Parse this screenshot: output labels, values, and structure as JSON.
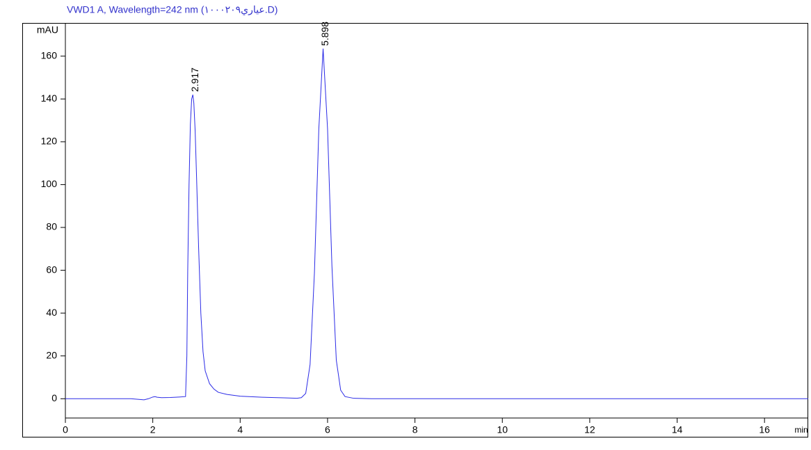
{
  "chart_data": {
    "type": "line",
    "title": "VWD1 A, Wavelength=242 nm (عياري١٠٠٠٢٠٩.D)",
    "y_label": "mAU",
    "x_label": "min",
    "xlim": [
      0,
      17
    ],
    "ylim": [
      -9,
      175.5
    ],
    "xticks": [
      0,
      2,
      4,
      6,
      8,
      10,
      12,
      14,
      16
    ],
    "yticks": [
      0,
      20,
      40,
      60,
      80,
      100,
      120,
      140,
      160
    ],
    "series": [
      {
        "color": "#2a2ae6",
        "x": [
          0,
          0.5,
          1,
          1.5,
          1.8,
          1.9,
          2.0,
          2.05,
          2.1,
          2.2,
          2.4,
          2.6,
          2.75,
          2.78,
          2.8,
          2.83,
          2.86,
          2.89,
          2.917,
          2.94,
          2.97,
          3.0,
          3.05,
          3.1,
          3.15,
          3.2,
          3.3,
          3.4,
          3.5,
          3.7,
          4.0,
          4.5,
          5.0,
          5.3,
          5.4,
          5.5,
          5.6,
          5.7,
          5.8,
          5.898,
          6.0,
          6.1,
          6.2,
          6.3,
          6.4,
          6.6,
          7,
          8,
          10,
          12,
          14,
          16,
          17
        ],
        "values": [
          0,
          0,
          0,
          0,
          -0.5,
          0,
          0.8,
          1.0,
          0.7,
          0.5,
          0.6,
          0.8,
          1.0,
          20,
          60,
          100,
          128,
          140,
          142,
          138,
          125,
          105,
          70,
          40,
          22,
          13,
          7,
          4.5,
          3,
          2,
          1.2,
          0.7,
          0.4,
          0.2,
          0.5,
          2.5,
          16,
          59,
          126,
          163.5,
          126,
          62,
          18,
          4,
          1,
          0.2,
          0,
          0,
          0,
          0,
          0,
          0,
          0
        ]
      }
    ],
    "peaks": [
      {
        "label": "2.917",
        "x": 2.917,
        "y": 142
      },
      {
        "label": "5.898",
        "x": 5.898,
        "y": 163.5
      }
    ]
  }
}
